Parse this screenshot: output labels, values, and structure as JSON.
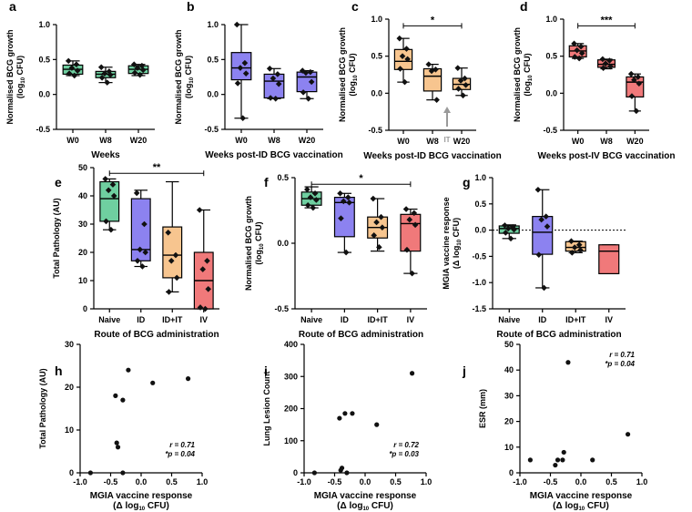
{
  "chart_data": [
    {
      "id": "a",
      "type": "box",
      "panel_label": "a",
      "categories": [
        "W0",
        "W8",
        "W20"
      ],
      "colors": [
        "#6fcfa0",
        "#6fcfa0",
        "#6fcfa0"
      ],
      "xlabel": "Weeks",
      "ylabel": [
        "Normalised BCG growth",
        "(log₁₀ CFU)"
      ],
      "ylim": [
        -0.5,
        1.0
      ],
      "yticks": [
        -0.5,
        0.0,
        0.5,
        1.0
      ],
      "ytick_labels": [
        "-0.5",
        "0.0",
        "0.5",
        "1.0"
      ],
      "boxes": [
        {
          "min": 0.27,
          "q1": 0.29,
          "median": 0.36,
          "q3": 0.42,
          "max": 0.48
        },
        {
          "min": 0.17,
          "q1": 0.24,
          "median": 0.29,
          "q3": 0.33,
          "max": 0.39
        },
        {
          "min": 0.27,
          "q1": 0.3,
          "median": 0.36,
          "q3": 0.41,
          "max": 0.43
        }
      ],
      "points": [
        [
          0.48,
          0.43,
          0.38,
          0.34,
          0.3,
          0.27
        ],
        [
          0.39,
          0.33,
          0.3,
          0.28,
          0.24,
          0.17
        ],
        [
          0.43,
          0.41,
          0.38,
          0.35,
          0.31,
          0.28
        ]
      ]
    },
    {
      "id": "b",
      "type": "box",
      "panel_label": "b",
      "categories": [
        "W0",
        "W8",
        "W20"
      ],
      "colors": [
        "#8c82f0",
        "#8c82f0",
        "#8c82f0"
      ],
      "xlabel": "Weeks post-ID BCG vaccination",
      "ylabel": [
        "Normalised BCG growth",
        "(log₁₀ CFU)"
      ],
      "ylim": [
        -0.5,
        1.0
      ],
      "yticks": [
        -0.5,
        0.0,
        0.5,
        1.0
      ],
      "ytick_labels": [
        "-0.5",
        "0.0",
        "0.5",
        "1.0"
      ],
      "boxes": [
        {
          "min": -0.34,
          "q1": 0.21,
          "median": 0.38,
          "q3": 0.6,
          "max": 1.0
        },
        {
          "min": -0.06,
          "q1": -0.05,
          "median": 0.19,
          "q3": 0.29,
          "max": 0.37
        },
        {
          "min": -0.06,
          "q1": 0.04,
          "median": 0.25,
          "q3": 0.32,
          "max": 0.34
        }
      ],
      "points": [
        [
          1.0,
          0.45,
          0.38,
          0.3,
          0.16,
          -0.34
        ],
        [
          0.37,
          0.29,
          0.23,
          0.15,
          -0.05,
          -0.06
        ],
        [
          0.34,
          0.32,
          0.31,
          0.18,
          0.03,
          -0.06
        ]
      ]
    },
    {
      "id": "c",
      "type": "box",
      "panel_label": "c",
      "categories": [
        "W0",
        "W8",
        "W20"
      ],
      "colors": [
        "#f7c58f",
        "#f7c58f",
        "#f7c58f"
      ],
      "xlabel": "Weeks post-ID BCG vaccination",
      "ylabel": [
        "Normalised BCG growth",
        "(log₁₀ CFU)"
      ],
      "ylim": [
        -0.5,
        1.0
      ],
      "yticks": [
        -0.5,
        0.0,
        0.5,
        1.0
      ],
      "ytick_labels": [
        "-0.5",
        "0.0",
        "0.5",
        "1.0"
      ],
      "boxes": [
        {
          "min": 0.15,
          "q1": 0.32,
          "median": 0.43,
          "q3": 0.59,
          "max": 0.74
        },
        {
          "min": -0.09,
          "q1": 0.03,
          "median": 0.23,
          "q3": 0.33,
          "max": 0.39
        },
        {
          "min": -0.03,
          "q1": 0.05,
          "median": 0.12,
          "q3": 0.2,
          "max": 0.34
        }
      ],
      "points": [
        [
          0.74,
          0.6,
          0.5,
          0.46,
          0.33,
          0.15
        ],
        [
          0.39,
          0.32,
          0.3,
          -0.09
        ],
        [
          0.34,
          0.2,
          0.17,
          0.11,
          0.06,
          -0.03
        ]
      ],
      "significance": [
        {
          "from": 0,
          "to": 2,
          "label": "*",
          "y": 0.91
        }
      ],
      "annotation": {
        "text": "IT",
        "x_between": [
          1,
          2
        ]
      }
    },
    {
      "id": "d",
      "type": "box",
      "panel_label": "d",
      "categories": [
        "W0",
        "W8",
        "W20"
      ],
      "colors": [
        "#f0797a",
        "#f0797a",
        "#f0797a"
      ],
      "xlabel": "Weeks post-IV BCG vaccination",
      "ylabel": [
        "Normalised BCG growth",
        "(log₁₀ CFU)"
      ],
      "ylim": [
        -0.5,
        1.0
      ],
      "yticks": [
        -0.5,
        0.0,
        0.5,
        1.0
      ],
      "ytick_labels": [
        "-0.5",
        "0.0",
        "0.5",
        "1.0"
      ],
      "boxes": [
        {
          "min": 0.47,
          "q1": 0.49,
          "median": 0.57,
          "q3": 0.64,
          "max": 0.67
        },
        {
          "min": 0.33,
          "q1": 0.35,
          "median": 0.39,
          "q3": 0.45,
          "max": 0.46
        },
        {
          "min": -0.24,
          "q1": -0.05,
          "median": 0.15,
          "q3": 0.22,
          "max": 0.26
        }
      ],
      "points": [
        [
          0.67,
          0.63,
          0.58,
          0.54,
          0.49,
          0.47
        ],
        [
          0.46,
          0.44,
          0.4,
          0.36,
          0.34
        ],
        [
          0.26,
          0.22,
          0.18,
          0.13,
          -0.04,
          -0.24
        ]
      ],
      "significance": [
        {
          "from": 0,
          "to": 2,
          "label": "***",
          "y": 0.91
        }
      ]
    },
    {
      "id": "e",
      "type": "box",
      "panel_label": "e",
      "categories": [
        "Naive",
        "ID",
        "ID+IT",
        "IV"
      ],
      "colors": [
        "#6fcfa0",
        "#8c82f0",
        "#f7c58f",
        "#f0797a"
      ],
      "xlabel": "Route of BCG administration",
      "ylabel": [
        "Total Pathology (AU)"
      ],
      "ylim": [
        0,
        50
      ],
      "yticks": [
        0,
        10,
        20,
        30,
        40,
        50
      ],
      "ytick_labels": [
        "0",
        "10",
        "20",
        "30",
        "40",
        "50"
      ],
      "boxes": [
        {
          "min": 28,
          "q1": 31,
          "median": 39,
          "q3": 45,
          "max": 46
        },
        {
          "min": 15,
          "q1": 17,
          "median": 21,
          "q3": 39,
          "max": 42
        },
        {
          "min": 6,
          "q1": 11,
          "median": 19,
          "q3": 29,
          "max": 45
        },
        {
          "min": 0,
          "q1": 0,
          "median": 10,
          "q3": 20,
          "max": 35
        }
      ],
      "points": [
        [
          46,
          44,
          42,
          40,
          31,
          28
        ],
        [
          41,
          30,
          21,
          20,
          17,
          15
        ],
        [
          27,
          19,
          17,
          11,
          6
        ],
        [
          35,
          17,
          14,
          7,
          0.5,
          0
        ]
      ],
      "significance": [
        {
          "from": 0,
          "to": 3,
          "label": "**",
          "y": 48
        }
      ]
    },
    {
      "id": "f",
      "type": "box",
      "panel_label": "f",
      "categories": [
        "Naive",
        "ID",
        "ID+IT",
        "IV"
      ],
      "colors": [
        "#6fcfa0",
        "#8c82f0",
        "#f7c58f",
        "#f0797a"
      ],
      "xlabel": "Route of BCG administration",
      "ylabel": [
        "Normalised BCG growth",
        "(log₁₀ CFU)"
      ],
      "ylim": [
        -0.5,
        0.5
      ],
      "yticks": [
        -0.5,
        0.0,
        0.5
      ],
      "ytick_labels": [
        "-0.5",
        "0.0",
        "0.5"
      ],
      "boxes": [
        {
          "min": 0.27,
          "q1": 0.29,
          "median": 0.34,
          "q3": 0.39,
          "max": 0.43
        },
        {
          "min": -0.07,
          "q1": 0.05,
          "median": 0.31,
          "q3": 0.35,
          "max": 0.38
        },
        {
          "min": -0.06,
          "q1": 0.04,
          "median": 0.12,
          "q3": 0.2,
          "max": 0.34
        },
        {
          "min": -0.23,
          "q1": -0.06,
          "median": 0.15,
          "q3": 0.22,
          "max": 0.26
        }
      ],
      "points": [
        [
          0.41,
          0.38,
          0.35,
          0.33,
          0.29,
          0.27
        ],
        [
          0.38,
          0.35,
          0.32,
          0.31,
          0.19,
          -0.07
        ],
        [
          0.34,
          0.2,
          0.16,
          0.12,
          0.06,
          -0.03
        ],
        [
          0.26,
          0.23,
          0.18,
          0.14,
          -0.05,
          -0.23
        ]
      ],
      "significance": [
        {
          "from": 0,
          "to": 3,
          "label": "*",
          "y": 0.45
        }
      ]
    },
    {
      "id": "g",
      "type": "box",
      "panel_label": "g",
      "categories": [
        "Naive",
        "ID",
        "ID+IT",
        "IV"
      ],
      "colors": [
        "#6fcfa0",
        "#8c82f0",
        "#f7c58f",
        "#f0797a"
      ],
      "xlabel": "Route of BCG administration",
      "ylabel": [
        "MGIA vaccine response",
        "(Δ log₁₀ CFU)"
      ],
      "ylim": [
        -1.5,
        1.0
      ],
      "yticks": [
        -1.5,
        -1.0,
        -0.5,
        0.0,
        0.5,
        1.0
      ],
      "ytick_labels": [
        "-1.5",
        "-1.0",
        "-0.5",
        "0.0",
        "0.5",
        "1.0"
      ],
      "reference_line": 0,
      "boxes": [
        {
          "min": -0.16,
          "q1": -0.06,
          "median": 0.03,
          "q3": 0.08,
          "max": 0.1
        },
        {
          "min": -1.1,
          "q1": -0.46,
          "median": -0.04,
          "q3": 0.26,
          "max": 0.77
        },
        {
          "min": -0.43,
          "q1": -0.4,
          "median": -0.33,
          "q3": -0.22,
          "max": -0.21
        },
        {
          "min": -0.83,
          "q1": -0.83,
          "median": -0.4,
          "q3": -0.28,
          "max": -0.28
        }
      ],
      "points": [
        [
          0.09,
          0.06,
          0.03,
          0.01,
          -0.05,
          -0.16
        ],
        [
          0.77,
          0.26,
          0.2,
          0.07,
          -0.47,
          -1.1
        ],
        [
          -0.21,
          -0.28,
          -0.33,
          -0.38,
          -0.43
        ],
        []
      ]
    },
    {
      "id": "h",
      "type": "scatter",
      "panel_label": "h",
      "xlabel": [
        "MGIA vaccine response",
        "(Δ log₁₀ CFU)"
      ],
      "ylabel": [
        "Total Pathology (AU)"
      ],
      "xlim": [
        -1.0,
        1.0
      ],
      "ylim": [
        0,
        30
      ],
      "xticks": [
        -1.0,
        -0.5,
        0.0,
        0.5,
        1.0
      ],
      "xtick_labels": [
        "-1.0",
        "-0.5",
        "0.0",
        "0.5",
        "1.0"
      ],
      "yticks": [
        0,
        10,
        20,
        30
      ],
      "ytick_labels": [
        "0",
        "10",
        "20",
        "30"
      ],
      "x": [
        -0.83,
        -0.42,
        -0.4,
        -0.38,
        -0.3,
        -0.3,
        -0.21,
        0.19,
        0.77
      ],
      "y": [
        0,
        18,
        7,
        6,
        17,
        0,
        24,
        21,
        22
      ],
      "stats": [
        "r = 0.71",
        "*p = 0.04"
      ]
    },
    {
      "id": "i",
      "type": "scatter",
      "panel_label": "i",
      "xlabel": [
        "MGIA vaccine response",
        "(Δ log₁₀ CFU)"
      ],
      "ylabel": [
        "Lung Lesion Count"
      ],
      "xlim": [
        -1.0,
        1.0
      ],
      "ylim": [
        0,
        400
      ],
      "xticks": [
        -1.0,
        -0.5,
        0.0,
        0.5,
        1.0
      ],
      "xtick_labels": [
        "-1.0",
        "-0.5",
        "0.0",
        "0.5",
        "1.0"
      ],
      "yticks": [
        0,
        100,
        200,
        300,
        400
      ],
      "ytick_labels": [
        "0",
        "100",
        "200",
        "300",
        "400"
      ],
      "x": [
        -0.83,
        -0.42,
        -0.4,
        -0.38,
        -0.33,
        -0.3,
        -0.21,
        0.19,
        0.77
      ],
      "y": [
        0,
        170,
        8,
        15,
        185,
        0,
        185,
        150,
        310
      ],
      "stats": [
        "r = 0.72",
        "*p = 0.03"
      ]
    },
    {
      "id": "j",
      "type": "scatter",
      "panel_label": "j",
      "xlabel": [
        "MGIA vaccine response",
        "(Δ log₁₀ CFU)"
      ],
      "ylabel": [
        "ESR (mm)"
      ],
      "xlim": [
        -1.0,
        1.0
      ],
      "ylim": [
        0,
        50
      ],
      "xticks": [
        -1.0,
        -0.5,
        0.0,
        0.5,
        1.0
      ],
      "xtick_labels": [
        "-1.0",
        "-0.5",
        "0.0",
        "0.5",
        "1.0"
      ],
      "yticks": [
        0,
        10,
        20,
        30,
        40,
        50
      ],
      "ytick_labels": [
        "0",
        "10",
        "20",
        "30",
        "40",
        "50"
      ],
      "x": [
        -0.83,
        -0.42,
        -0.38,
        -0.3,
        -0.28,
        -0.21,
        0.19,
        0.77
      ],
      "y": [
        5,
        3,
        5,
        5,
        8,
        43,
        5,
        15
      ],
      "stats": [
        "r = 0.71",
        "*p = 0.04"
      ]
    }
  ]
}
